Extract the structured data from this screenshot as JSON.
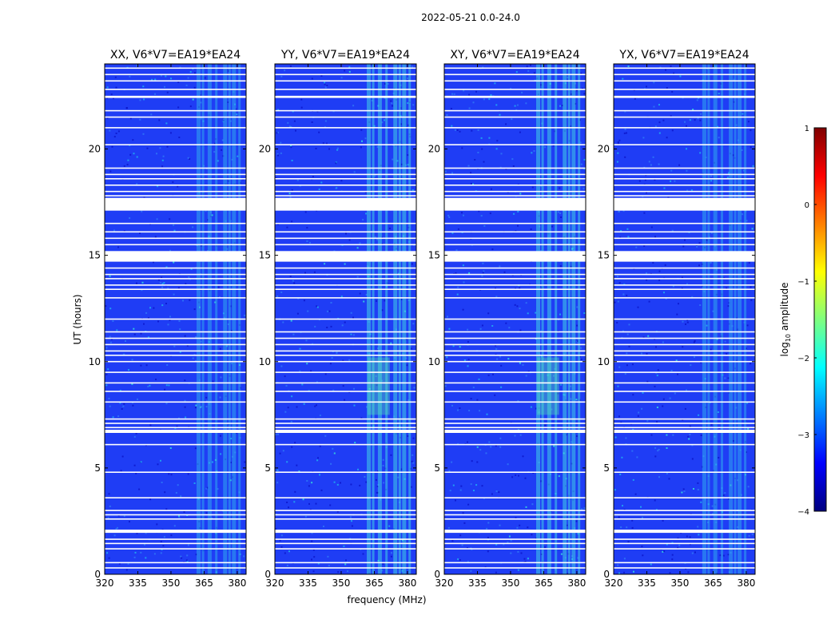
{
  "figure": {
    "suptitle": "2022-05-21 0.0-24.0",
    "xlabel": "frequency (MHz)",
    "ylabel": "UT (hours)"
  },
  "chart_data": {
    "type": "heatmap",
    "panels": [
      {
        "title": "XX, V6*V7=EA19*EA24",
        "pol": "XX"
      },
      {
        "title": "YY, V6*V7=EA19*EA24",
        "pol": "YY"
      },
      {
        "title": "XY, V6*V7=EA19*EA24",
        "pol": "XY"
      },
      {
        "title": "YX, V6*V7=EA19*EA24",
        "pol": "YX"
      }
    ],
    "x_range": [
      320,
      384
    ],
    "x_ticks": [
      320,
      335,
      350,
      365,
      380
    ],
    "x_tick_labels": [
      "320",
      "335",
      "350",
      "365",
      "380"
    ],
    "y_range": [
      0,
      24
    ],
    "y_ticks": [
      0,
      5,
      10,
      15,
      20
    ],
    "y_tick_labels": [
      "0",
      "5",
      "10",
      "15",
      "20"
    ],
    "rfi_channels_mhz": [
      362.5,
      364.5,
      367.5,
      370.5,
      374.5,
      376.5,
      378.5,
      381
    ],
    "flagged_time_ranges_h": [
      [
        17.1,
        17.7
      ],
      [
        14.7,
        15.2
      ],
      [
        6.65,
        6.8
      ],
      [
        1.95,
        2.1
      ],
      [
        22.4,
        22.5
      ]
    ],
    "flagged_time_lines_h": [
      0.3,
      0.55,
      1.2,
      1.45,
      1.65,
      2.6,
      2.8,
      3.0,
      3.6,
      4.8,
      6.1,
      6.9,
      7.1,
      7.3,
      8.1,
      8.6,
      9.0,
      9.5,
      10.0,
      10.3,
      10.5,
      10.8,
      11.1,
      11.4,
      12.0,
      13.0,
      13.4,
      13.6,
      13.9,
      14.1,
      14.4,
      15.5,
      15.8,
      16.1,
      16.5,
      17.8,
      18.0,
      18.3,
      18.6,
      18.8,
      19.1,
      20.2,
      21.0,
      21.5,
      21.8,
      22.8,
      23.2,
      23.5,
      23.8
    ],
    "colorbar": {
      "label": "log10 amplitude",
      "label_main": "log",
      "label_sub": "10",
      "label_rest": " amplitude",
      "range": [
        -4,
        1
      ],
      "ticks": [
        1,
        0,
        -1,
        -2,
        -3,
        -4
      ],
      "tick_labels": [
        "1",
        "0",
        "−1",
        "−2",
        "−3",
        "−4"
      ],
      "colormap": "jet",
      "colors": [
        "#00007f",
        "#0000ff",
        "#007fff",
        "#00ffff",
        "#7fff7f",
        "#ffff00",
        "#ff7f00",
        "#ff0000",
        "#7f0000"
      ]
    }
  }
}
